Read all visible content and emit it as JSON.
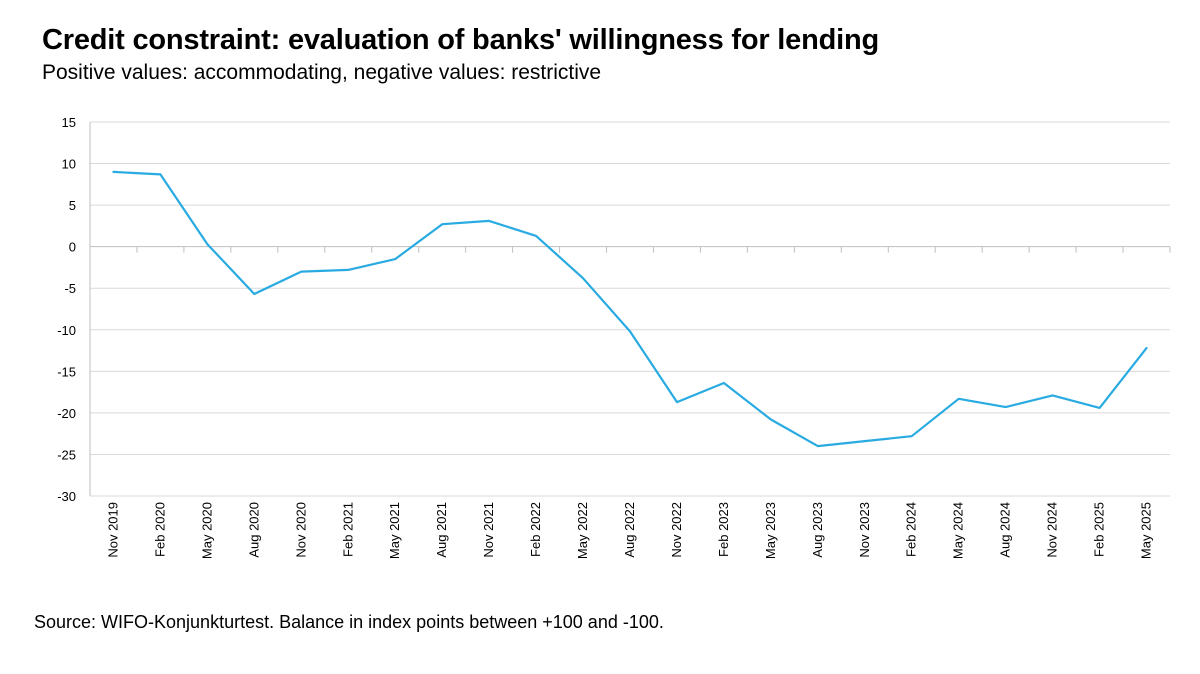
{
  "title": "Credit constraint: evaluation of banks' willingness for lending",
  "subtitle": "Positive values: accommodating, negative values: restrictive",
  "source": "Source: WIFO-Konjunkturtest. Balance in index points between +100 and -100.",
  "colors": {
    "line": "#29abe2",
    "grid": "#d9d9d9",
    "axis": "#bfbfbf"
  },
  "chart_data": {
    "type": "line",
    "title": "Credit constraint: evaluation of banks' willingness for lending",
    "subtitle": "Positive values: accommodating, negative values: restrictive",
    "xlabel": "",
    "ylabel": "",
    "ylim": [
      -30,
      15
    ],
    "yticks": [
      15,
      10,
      5,
      0,
      -5,
      -10,
      -15,
      -20,
      -25,
      -30
    ],
    "grid": true,
    "legend": "none",
    "categories": [
      "Nov 2019",
      "Feb 2020",
      "May 2020",
      "Aug 2020",
      "Nov 2020",
      "Feb 2021",
      "May 2021",
      "Aug 2021",
      "Nov 2021",
      "Feb 2022",
      "May 2022",
      "Aug 2022",
      "Nov 2022",
      "Feb 2023",
      "May 2023",
      "Aug 2023",
      "Nov 2023",
      "Feb 2024",
      "May 2024",
      "Aug 2024",
      "Nov 2024",
      "Feb 2025",
      "May 2025"
    ],
    "series": [
      {
        "values": [
          9.0,
          8.7,
          0.3,
          -5.7,
          -3.0,
          -2.8,
          -1.5,
          2.7,
          3.1,
          1.3,
          -3.8,
          -10.2,
          -18.7,
          -16.4,
          -20.8,
          -24.0,
          -23.4,
          -22.8,
          -18.3,
          -19.3,
          -17.9,
          -19.4,
          -12.2
        ]
      }
    ]
  }
}
